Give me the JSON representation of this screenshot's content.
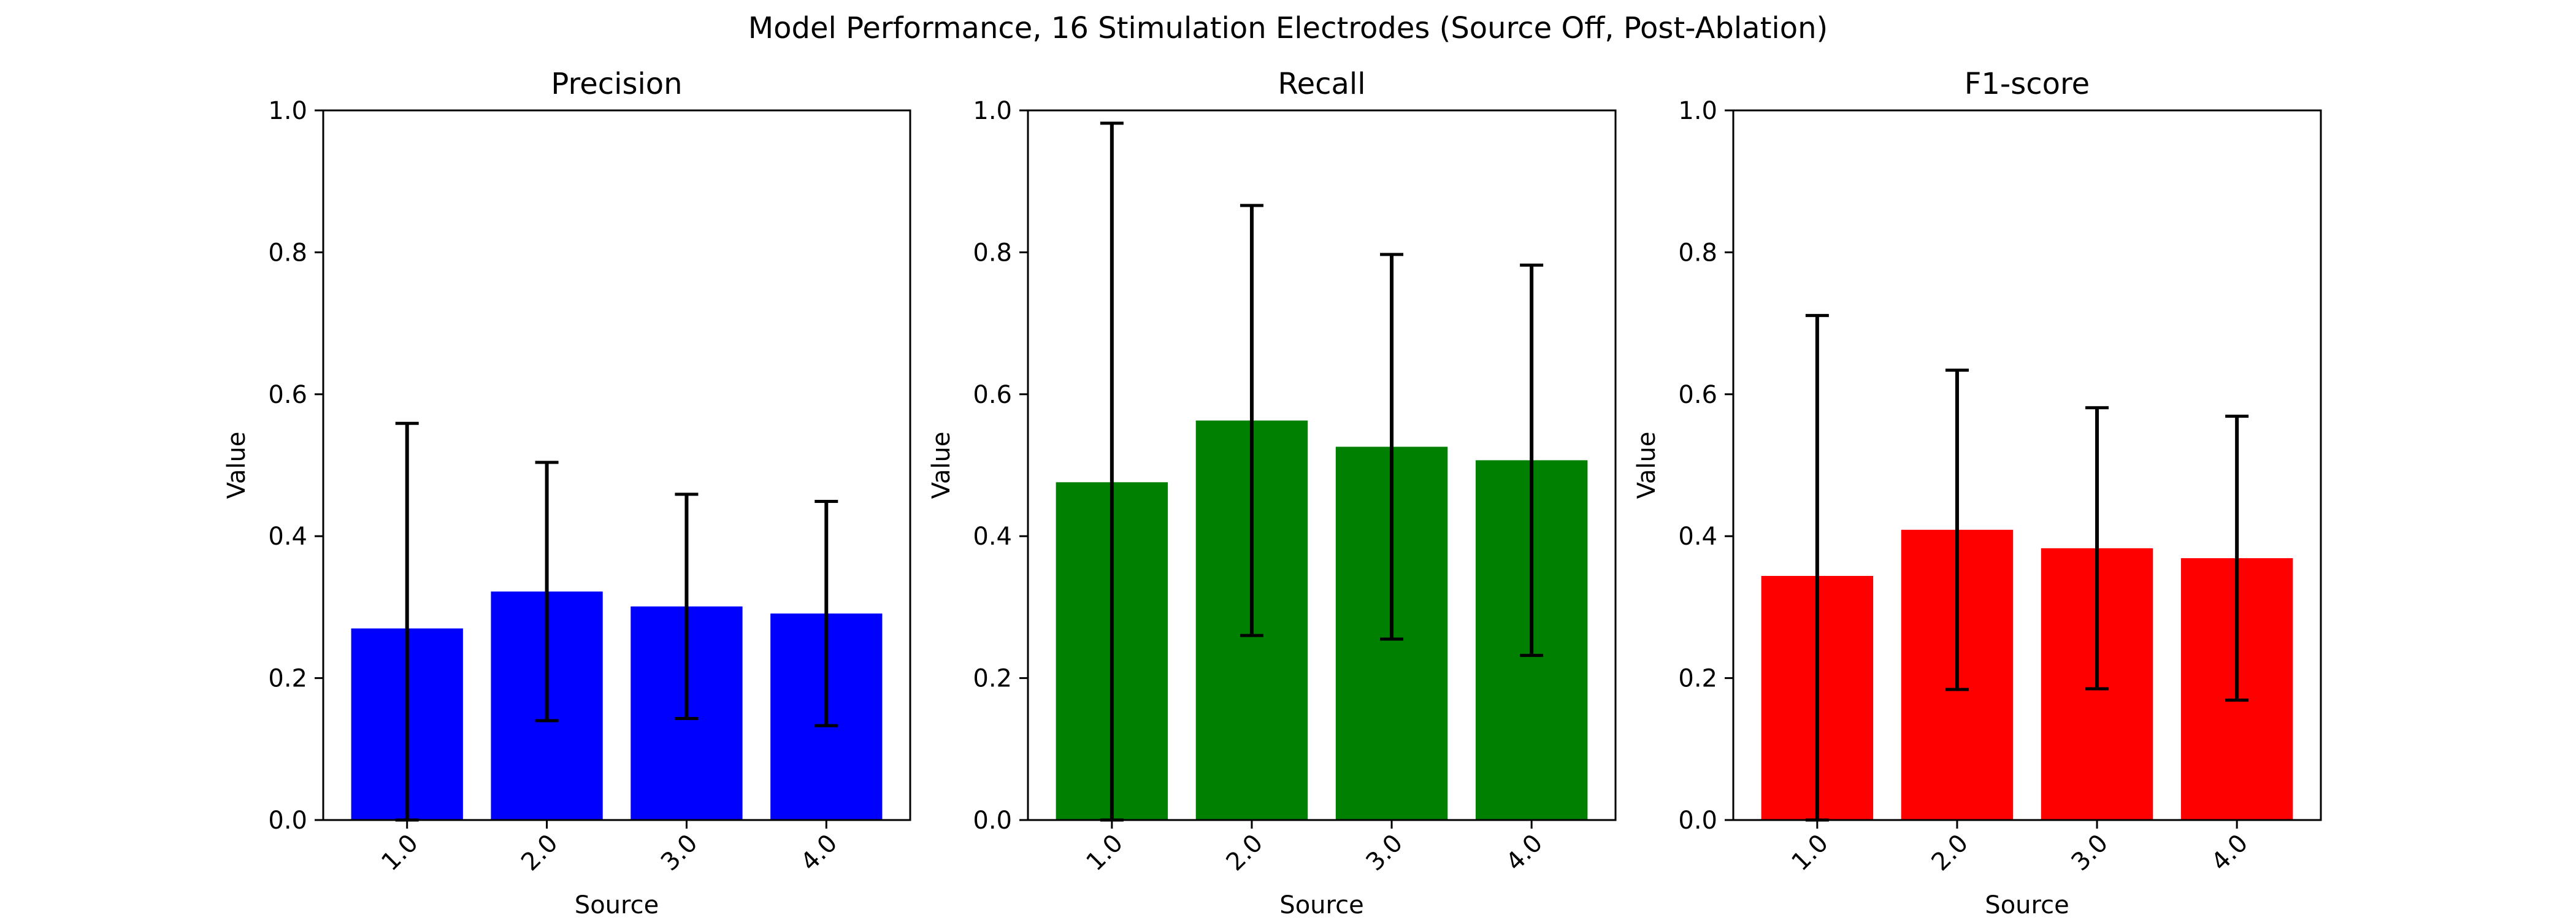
{
  "figure": {
    "suptitle": "Model Performance, 16 Stimulation Electrodes (Source Off, Post-Ablation)"
  },
  "chart_data": [
    {
      "type": "bar",
      "title": "Precision",
      "xlabel": "Source",
      "ylabel": "Value",
      "categories": [
        "1.0",
        "2.0",
        "3.0",
        "4.0"
      ],
      "values": [
        0.27,
        0.322,
        0.301,
        0.291
      ],
      "error": [
        0.289,
        0.182,
        0.158,
        0.158
      ],
      "ylim": [
        0,
        1
      ],
      "yticks": [
        "0.0",
        "0.2",
        "0.4",
        "0.6",
        "0.8",
        "1.0"
      ],
      "color": "#0000ff",
      "grid": false
    },
    {
      "type": "bar",
      "title": "Recall",
      "xlabel": "Source",
      "ylabel": "Value",
      "categories": [
        "1.0",
        "2.0",
        "3.0",
        "4.0"
      ],
      "values": [
        0.476,
        0.563,
        0.526,
        0.507
      ],
      "error": [
        0.506,
        0.303,
        0.271,
        0.275
      ],
      "ylim": [
        0,
        1
      ],
      "yticks": [
        "0.0",
        "0.2",
        "0.4",
        "0.6",
        "0.8",
        "1.0"
      ],
      "color": "#008000",
      "grid": false
    },
    {
      "type": "bar",
      "title": "F1-score",
      "xlabel": "Source",
      "ylabel": "Value",
      "categories": [
        "1.0",
        "2.0",
        "3.0",
        "4.0"
      ],
      "values": [
        0.344,
        0.409,
        0.383,
        0.369
      ],
      "error": [
        0.367,
        0.225,
        0.198,
        0.2
      ],
      "ylim": [
        0,
        1
      ],
      "yticks": [
        "0.0",
        "0.2",
        "0.4",
        "0.6",
        "0.8",
        "1.0"
      ],
      "color": "#ff0000",
      "grid": false
    }
  ]
}
